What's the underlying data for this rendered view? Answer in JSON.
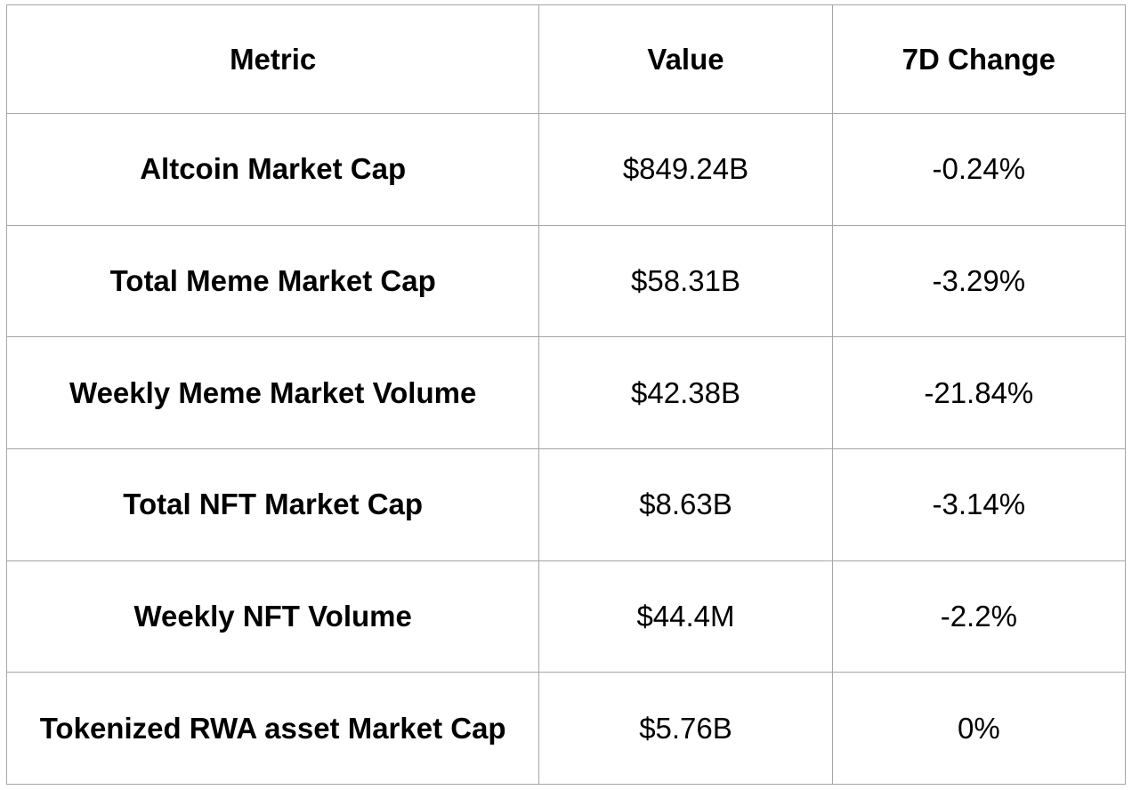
{
  "colors": {
    "border": "#a6a6a6",
    "text": "#000000",
    "background": "#ffffff"
  },
  "chart_data": {
    "type": "table",
    "title": "",
    "columns": [
      "Metric",
      "Value",
      "7D Change"
    ],
    "rows": [
      {
        "metric": "Altcoin Market Cap",
        "value": "$849.24B",
        "change_7d": "-0.24%"
      },
      {
        "metric": "Total Meme Market Cap",
        "value": "$58.31B",
        "change_7d": "-3.29%"
      },
      {
        "metric": "Weekly Meme Market Volume",
        "value": "$42.38B",
        "change_7d": "-21.84%"
      },
      {
        "metric": "Total NFT Market Cap",
        "value": "$8.63B",
        "change_7d": "-3.14%"
      },
      {
        "metric": "Weekly NFT Volume",
        "value": "$44.4M",
        "change_7d": "-2.2%"
      },
      {
        "metric": "Tokenized RWA asset Market Cap",
        "value": "$5.76B",
        "change_7d": "0%"
      }
    ]
  }
}
